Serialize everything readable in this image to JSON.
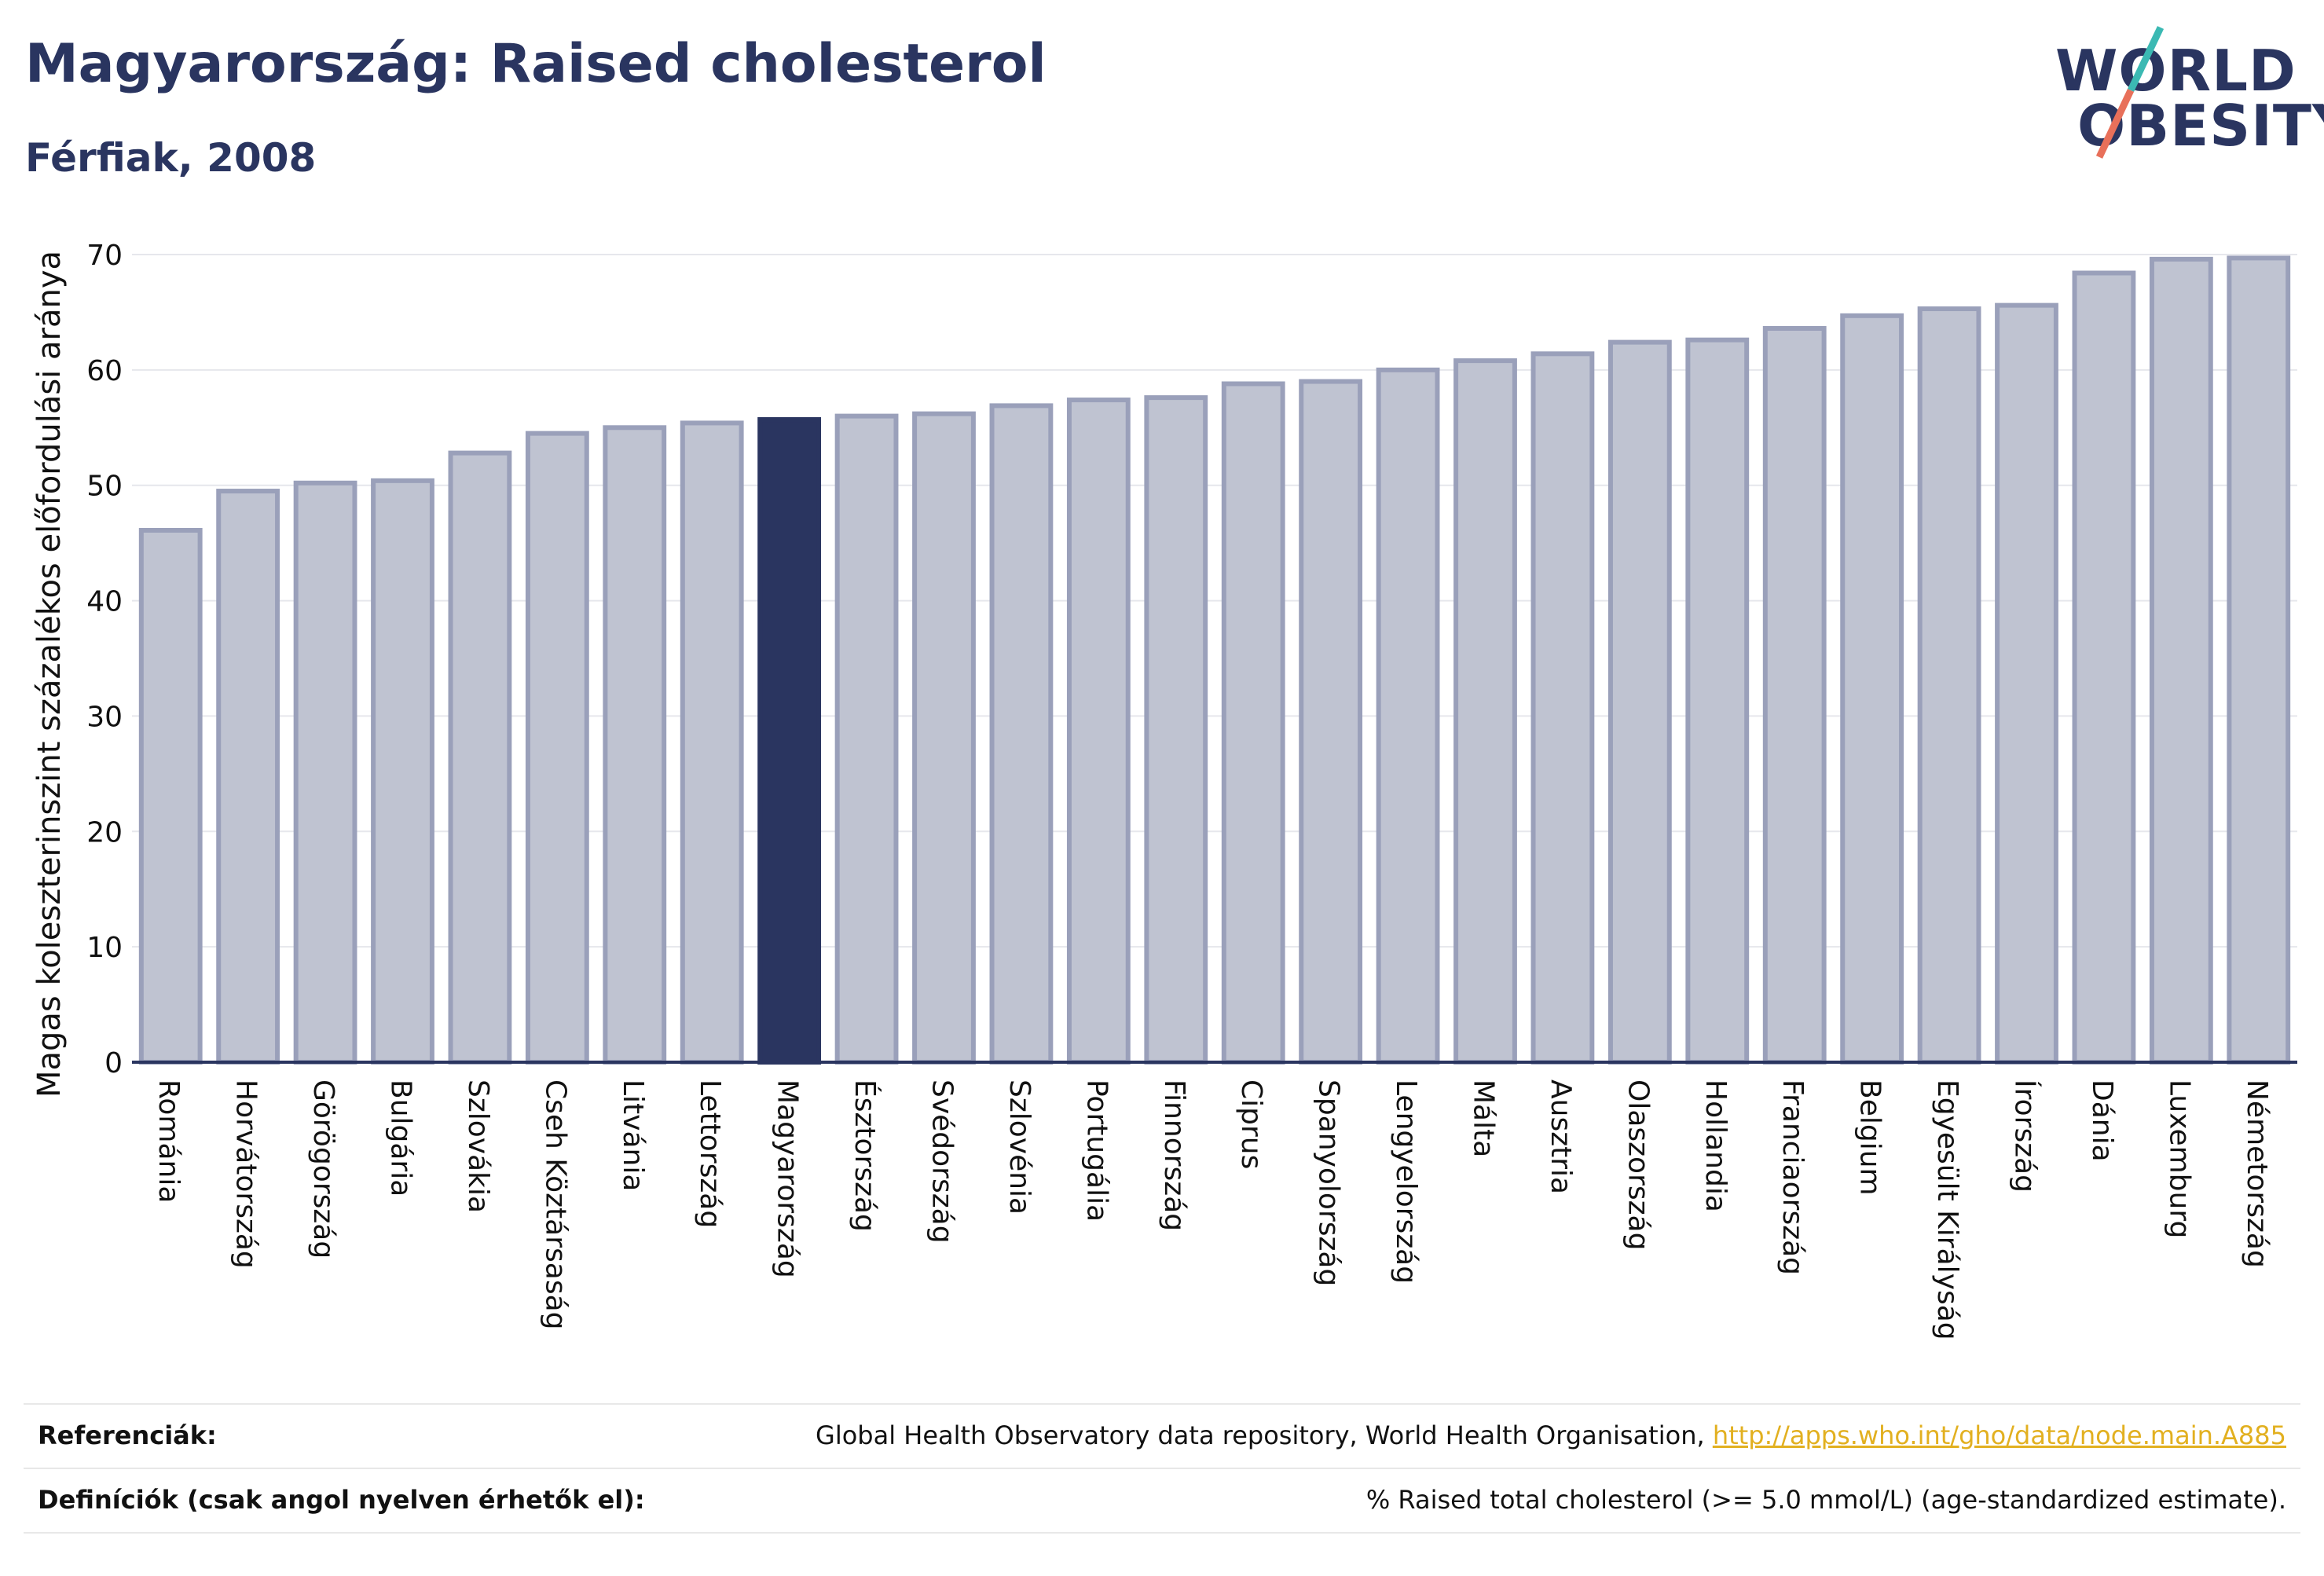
{
  "header": {
    "title": "Magyarország: Raised cholesterol",
    "subtitle": "Férfiak, 2008"
  },
  "logo": {
    "line1": "WORLD",
    "line2": "OBESITY",
    "accent_teal": "#3bb9b3",
    "accent_coral": "#e8705a"
  },
  "chart_data": {
    "type": "bar",
    "title": "Magyarország: Raised cholesterol",
    "subtitle": "Férfiak, 2008",
    "xlabel": "",
    "ylabel": "Magas koleszterinszint százalékos előfordulási aránya",
    "ylim": [
      0,
      70
    ],
    "yticks": [
      0,
      10,
      20,
      30,
      40,
      50,
      60,
      70
    ],
    "grid": true,
    "highlight": "Magyarország",
    "colors": {
      "bar": "#bfc3d1",
      "bar_edge": "#9aa0ba",
      "highlight": "#2a3560",
      "axis": "#2a3560"
    },
    "categories": [
      "Románia",
      "Horvátország",
      "Görögország",
      "Bulgária",
      "Szlovákia",
      "Cseh Köztársaság",
      "Litvánia",
      "Lettország",
      "Magyarország",
      "Észtország",
      "Svédország",
      "Szlovénia",
      "Portugália",
      "Finnország",
      "Ciprus",
      "Spanyolország",
      "Lengyelország",
      "Málta",
      "Ausztria",
      "Olaszország",
      "Hollandia",
      "Franciaország",
      "Belgium",
      "Egyesült Királyság",
      "Írország",
      "Dánia",
      "Luxemburg",
      "Németország"
    ],
    "values": [
      46.1,
      49.5,
      50.2,
      50.4,
      52.8,
      54.5,
      55.0,
      55.4,
      55.7,
      56.0,
      56.2,
      56.9,
      57.4,
      57.6,
      58.8,
      59.0,
      60.0,
      60.8,
      61.4,
      62.4,
      62.6,
      63.6,
      64.7,
      65.3,
      65.6,
      68.4,
      69.6,
      69.7
    ]
  },
  "footer": {
    "references_label": "Referenciák:",
    "references_text": "Global Health Observatory data repository, World Health Organisation, ",
    "references_link": "http://apps.who.int/gho/data/node.main.A885",
    "definitions_label": "Definíciók (csak angol nyelven érhetők el):",
    "definitions_text": "% Raised total cholesterol (>= 5.0 mmol/L) (age-standardized estimate)."
  }
}
